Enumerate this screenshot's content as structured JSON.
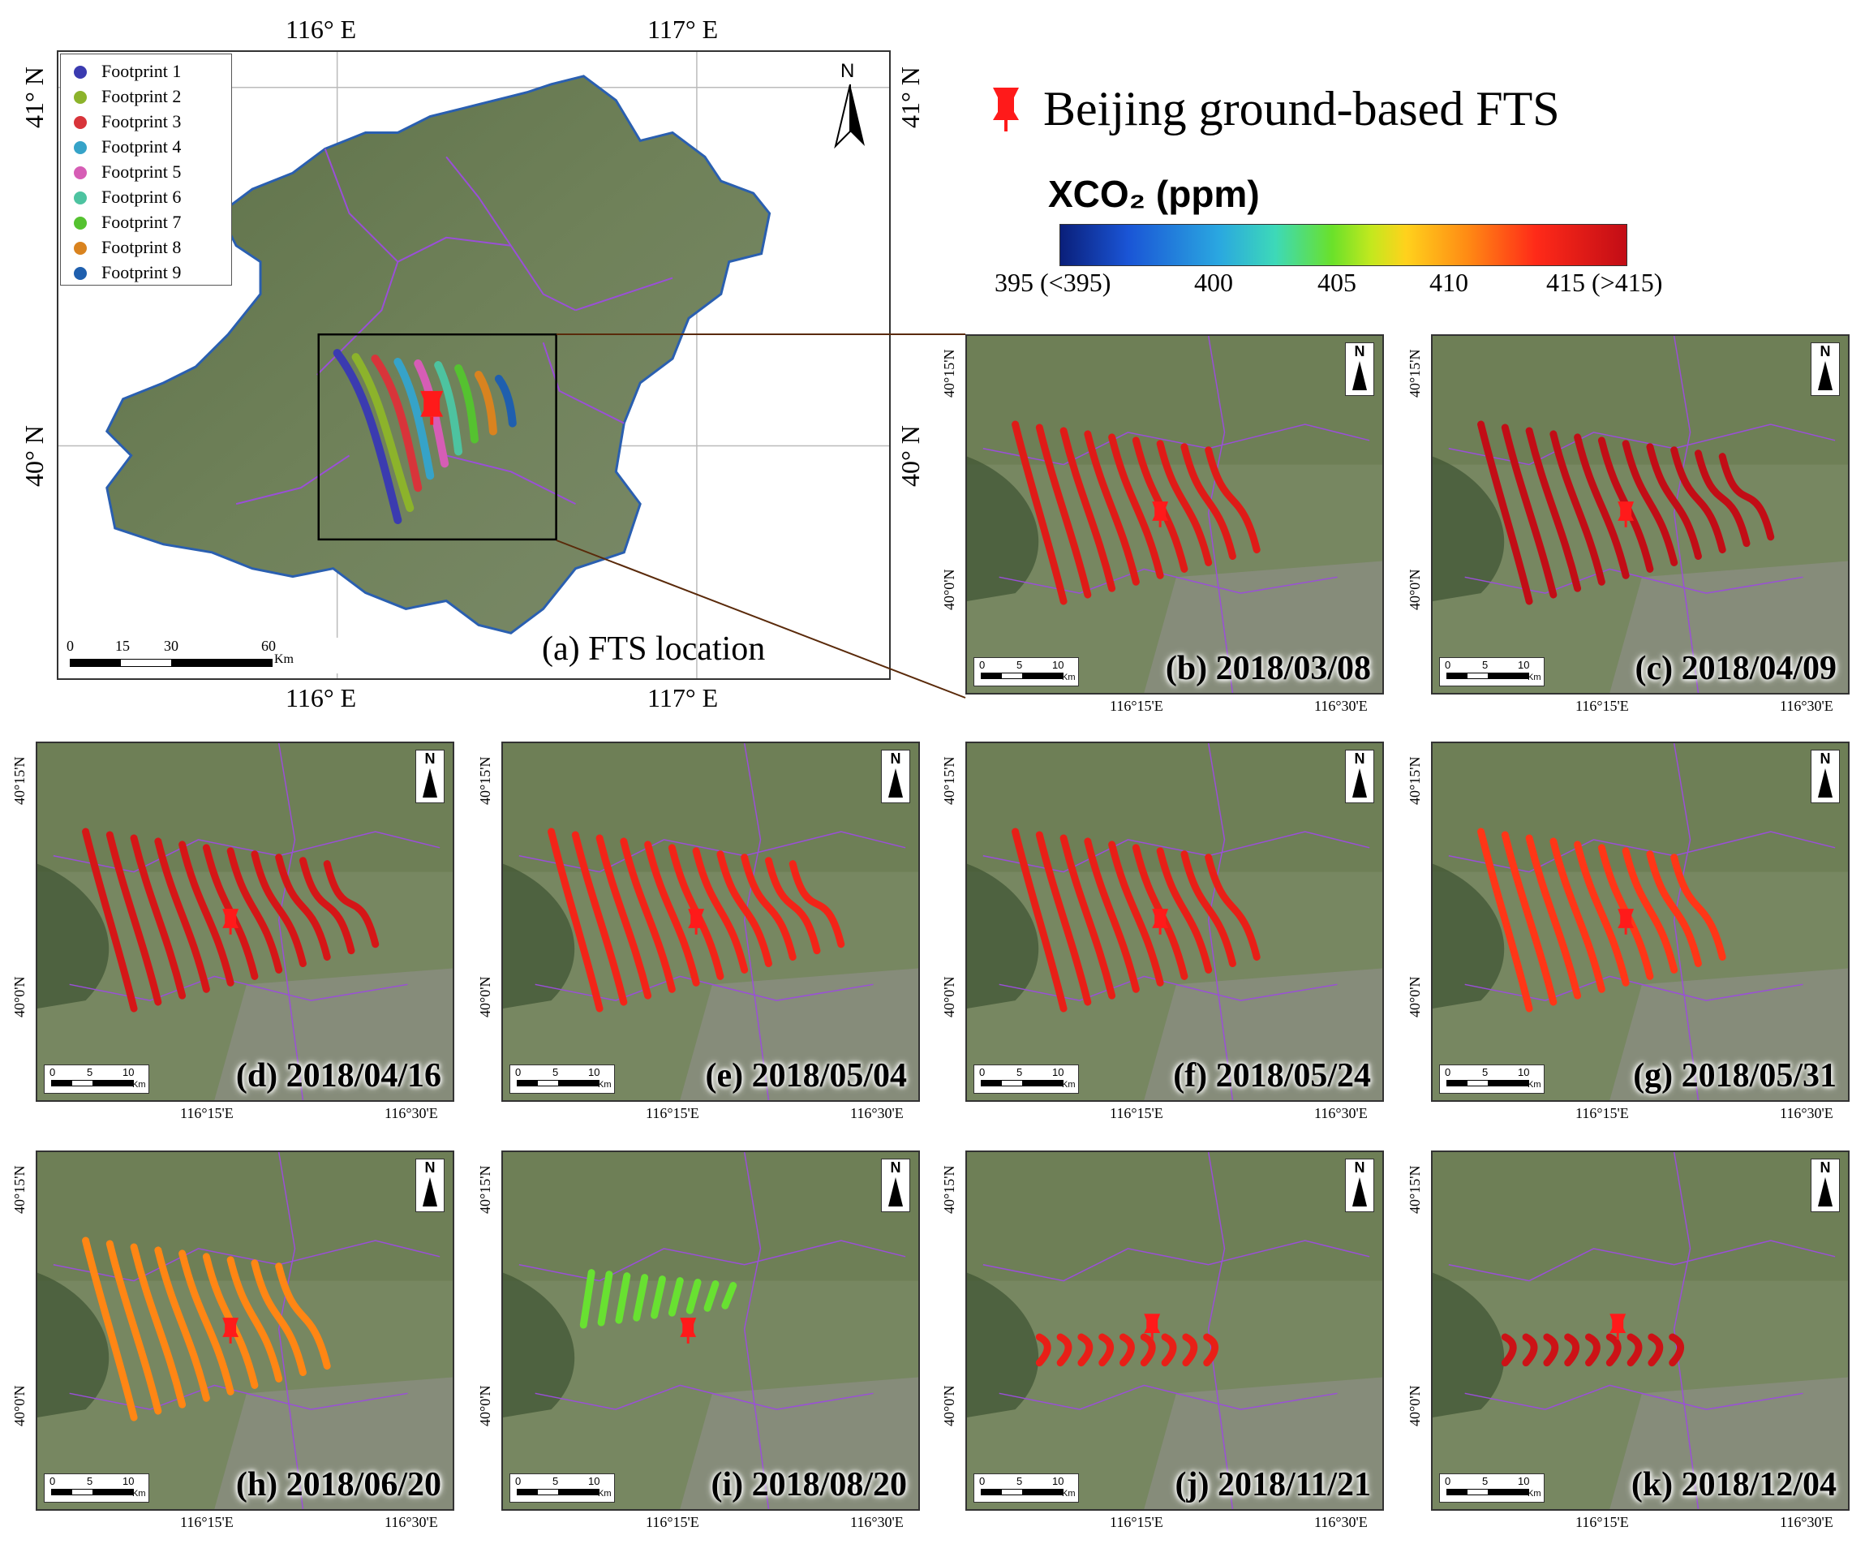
{
  "legend": {
    "fts_label": "Beijing ground-based FTS",
    "footprints": [
      {
        "label": "Footprint 1",
        "color": "#3b3bb0"
      },
      {
        "label": "Footprint 2",
        "color": "#8cb32b"
      },
      {
        "label": "Footprint 3",
        "color": "#d8343a"
      },
      {
        "label": "Footprint 4",
        "color": "#36a3c8"
      },
      {
        "label": "Footprint 5",
        "color": "#d65db5"
      },
      {
        "label": "Footprint 6",
        "color": "#4dc3a0"
      },
      {
        "label": "Footprint 7",
        "color": "#55c230"
      },
      {
        "label": "Footprint 8",
        "color": "#d9831f"
      },
      {
        "label": "Footprint 9",
        "color": "#1f5fae"
      }
    ]
  },
  "colorbar": {
    "title": "XCO₂ (ppm)",
    "ticks": [
      "395 (<395)",
      "400",
      "405",
      "410",
      "415 (>415)"
    ],
    "range": [
      395,
      415
    ]
  },
  "main_map": {
    "label": "(a) FTS location",
    "top_lon": [
      "116° E",
      "117° E"
    ],
    "bottom_lon": [
      "116° E",
      "117° E"
    ],
    "left_lat": [
      "41° N",
      "40° N"
    ],
    "right_lat": [
      "41° N",
      "40° N"
    ],
    "north": "N",
    "scale": {
      "ticks": [
        "0",
        "15",
        "30",
        "60"
      ],
      "unit": "Km"
    }
  },
  "panel_common": {
    "north": "N",
    "lon_ticks": [
      "116°15'E",
      "116°30'E"
    ],
    "lat_ticks": [
      "40°15'N",
      "40°0'N"
    ],
    "scale": {
      "ticks": [
        "0",
        "5",
        "10"
      ],
      "unit": "Km"
    }
  },
  "panels": [
    {
      "id": "b",
      "label": "(b) 2018/03/08",
      "xco2": 413.5
    },
    {
      "id": "c",
      "label": "(c) 2018/04/09",
      "xco2": 415.5
    },
    {
      "id": "d",
      "label": "(d) 2018/04/16",
      "xco2": 414.0
    },
    {
      "id": "e",
      "label": "(e) 2018/05/04",
      "xco2": 412.5
    },
    {
      "id": "f",
      "label": "(f) 2018/05/24",
      "xco2": 413.0
    },
    {
      "id": "g",
      "label": "(g) 2018/05/31",
      "xco2": 411.5
    },
    {
      "id": "h",
      "label": "(h) 2018/06/20",
      "xco2": 409.5
    },
    {
      "id": "i",
      "label": "(i) 2018/08/20",
      "xco2": 404.5
    },
    {
      "id": "j",
      "label": "(j) 2018/11/21",
      "xco2": 413.0
    },
    {
      "id": "k",
      "label": "(k) 2018/12/04",
      "xco2": 414.5
    }
  ]
}
